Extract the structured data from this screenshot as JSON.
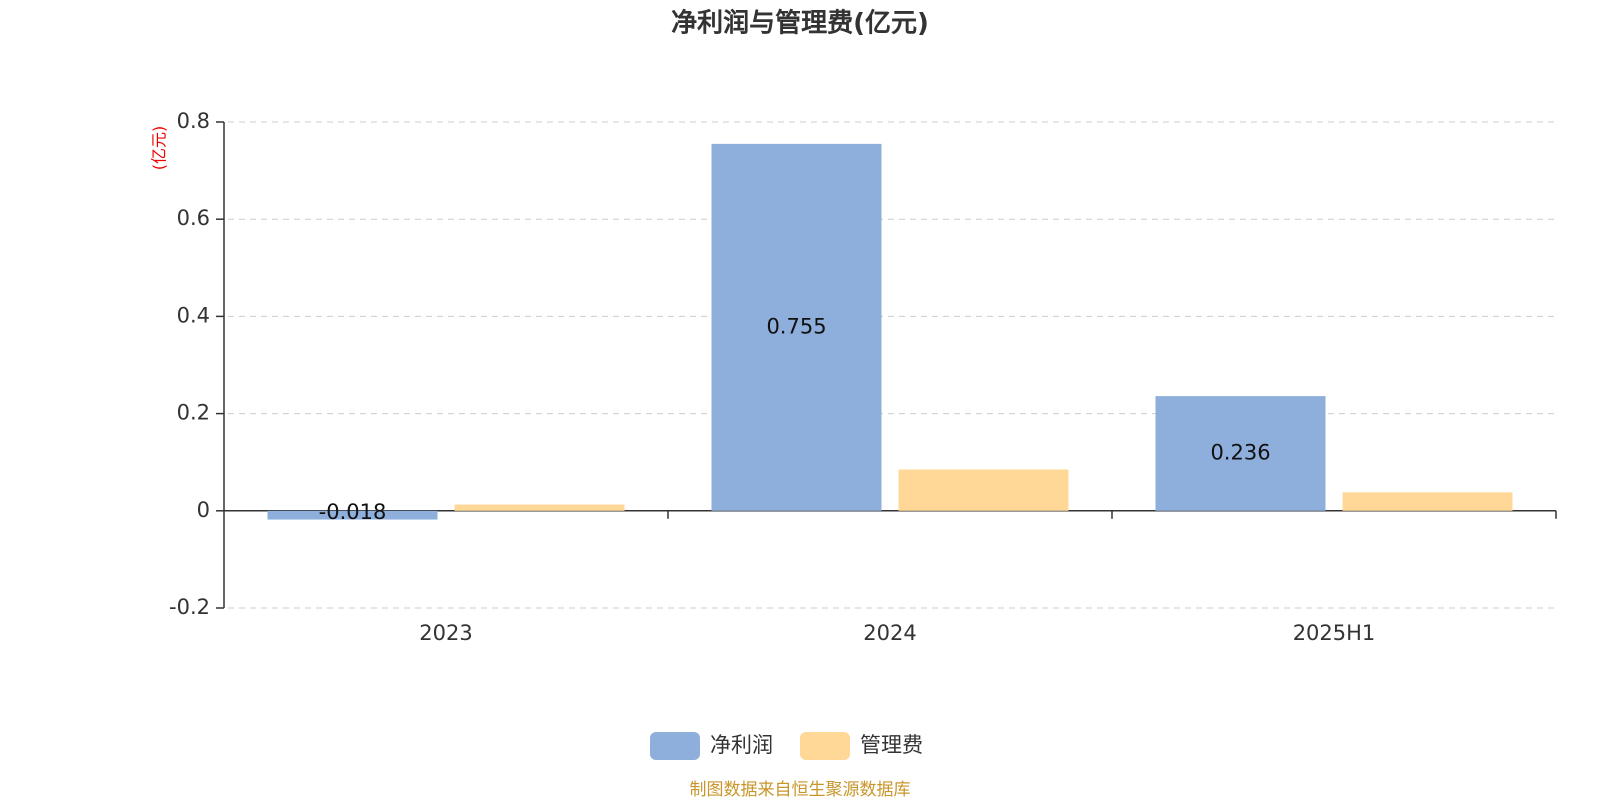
{
  "chart_data": {
    "type": "bar",
    "title": "净利润与管理费(亿元)",
    "y_axis_label": "(亿元)",
    "categories": [
      "2023",
      "2024",
      "2025H1"
    ],
    "series": [
      {
        "name": "净利润",
        "color": "#8eaedb",
        "values": [
          -0.018,
          0.755,
          0.236
        ],
        "labels": true
      },
      {
        "name": "管理费",
        "color": "#ffd898",
        "values": [
          0.013,
          0.085,
          0.038
        ],
        "labels": false
      }
    ],
    "ylim": [
      -0.2,
      0.8
    ],
    "yticks": [
      -0.2,
      0,
      0.2,
      0.4,
      0.6,
      0.8
    ],
    "grid": true,
    "legend": "bottom",
    "source": "制图数据来自恒生聚源数据库"
  }
}
